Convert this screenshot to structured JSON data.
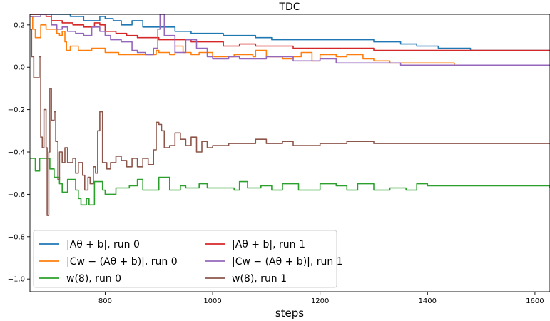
{
  "chart_data": {
    "type": "line",
    "title": "TDC",
    "xlabel": "steps",
    "ylabel": "",
    "xlim": [
      660,
      1628
    ],
    "ylim": [
      -1.06,
      0.25
    ],
    "xticks": [
      800,
      1000,
      1200,
      1400,
      1600
    ],
    "yticks": [
      -1.0,
      -0.8,
      -0.6,
      -0.4,
      -0.2,
      0.0,
      0.2
    ],
    "ytick_labels": [
      "−1.0",
      "−0.8",
      "−0.6",
      "−0.4",
      "−0.2",
      "0.0",
      "0.2"
    ],
    "xtick_labels": [
      "800",
      "1000",
      "1200",
      "1400",
      "1600"
    ],
    "grid": false,
    "legend_position": "bottom-left",
    "legend_columns": 2,
    "series": [
      {
        "name": "|Aθ + b|, run 0",
        "color": "#1f77b4",
        "points": [
          [
            660,
            0.25
          ],
          [
            700,
            0.25
          ],
          [
            735,
            0.24
          ],
          [
            760,
            0.22
          ],
          [
            790,
            0.24
          ],
          [
            800,
            0.23
          ],
          [
            815,
            0.22
          ],
          [
            830,
            0.2
          ],
          [
            850,
            0.22
          ],
          [
            870,
            0.19
          ],
          [
            900,
            0.19
          ],
          [
            930,
            0.17
          ],
          [
            960,
            0.16
          ],
          [
            990,
            0.16
          ],
          [
            1020,
            0.15
          ],
          [
            1050,
            0.15
          ],
          [
            1080,
            0.14
          ],
          [
            1110,
            0.13
          ],
          [
            1140,
            0.13
          ],
          [
            1200,
            0.13
          ],
          [
            1250,
            0.13
          ],
          [
            1300,
            0.12
          ],
          [
            1350,
            0.11
          ],
          [
            1380,
            0.1
          ],
          [
            1420,
            0.09
          ],
          [
            1480,
            0.08
          ],
          [
            1550,
            0.08
          ],
          [
            1628,
            0.08
          ]
        ]
      },
      {
        "name": "|Cw − (Aθ + b)|, run 0",
        "color": "#ff7f0e",
        "points": [
          [
            660,
            0.24
          ],
          [
            665,
            0.18
          ],
          [
            670,
            0.14
          ],
          [
            680,
            0.2
          ],
          [
            690,
            0.18
          ],
          [
            710,
            0.16
          ],
          [
            715,
            0.15
          ],
          [
            720,
            0.17
          ],
          [
            725,
            0.12
          ],
          [
            728,
            0.08
          ],
          [
            735,
            0.1
          ],
          [
            750,
            0.08
          ],
          [
            775,
            0.09
          ],
          [
            790,
            0.09
          ],
          [
            800,
            0.07
          ],
          [
            825,
            0.06
          ],
          [
            860,
            0.06
          ],
          [
            880,
            0.06
          ],
          [
            895,
            0.08
          ],
          [
            900,
            0.07
          ],
          [
            920,
            0.06
          ],
          [
            930,
            0.1
          ],
          [
            945,
            0.07
          ],
          [
            960,
            0.06
          ],
          [
            975,
            0.07
          ],
          [
            1000,
            0.05
          ],
          [
            1040,
            0.06
          ],
          [
            1075,
            0.05
          ],
          [
            1080,
            0.08
          ],
          [
            1100,
            0.05
          ],
          [
            1130,
            0.04
          ],
          [
            1150,
            0.05
          ],
          [
            1165,
            0.07
          ],
          [
            1185,
            0.03
          ],
          [
            1200,
            0.06
          ],
          [
            1230,
            0.05
          ],
          [
            1250,
            0.06
          ],
          [
            1280,
            0.04
          ],
          [
            1300,
            0.03
          ],
          [
            1330,
            0.02
          ],
          [
            1360,
            0.02
          ],
          [
            1400,
            0.02
          ],
          [
            1450,
            0.01
          ],
          [
            1500,
            0.01
          ],
          [
            1550,
            0.01
          ],
          [
            1628,
            0.01
          ]
        ]
      },
      {
        "name": "w(8), run 0",
        "color": "#2ca02c",
        "points": [
          [
            660,
            -0.43
          ],
          [
            670,
            -0.49
          ],
          [
            678,
            -0.43
          ],
          [
            690,
            -0.43
          ],
          [
            697,
            -0.48
          ],
          [
            705,
            -0.52
          ],
          [
            715,
            -0.55
          ],
          [
            720,
            -0.59
          ],
          [
            730,
            -0.53
          ],
          [
            745,
            -0.58
          ],
          [
            750,
            -0.62
          ],
          [
            755,
            -0.65
          ],
          [
            765,
            -0.62
          ],
          [
            770,
            -0.65
          ],
          [
            780,
            -0.54
          ],
          [
            795,
            -0.58
          ],
          [
            800,
            -0.6
          ],
          [
            820,
            -0.57
          ],
          [
            845,
            -0.56
          ],
          [
            860,
            -0.53
          ],
          [
            870,
            -0.58
          ],
          [
            890,
            -0.58
          ],
          [
            900,
            -0.52
          ],
          [
            920,
            -0.58
          ],
          [
            940,
            -0.56
          ],
          [
            950,
            -0.57
          ],
          [
            975,
            -0.55
          ],
          [
            990,
            -0.57
          ],
          [
            1000,
            -0.57
          ],
          [
            1040,
            -0.58
          ],
          [
            1050,
            -0.54
          ],
          [
            1065,
            -0.57
          ],
          [
            1090,
            -0.56
          ],
          [
            1110,
            -0.58
          ],
          [
            1130,
            -0.55
          ],
          [
            1160,
            -0.58
          ],
          [
            1200,
            -0.55
          ],
          [
            1230,
            -0.56
          ],
          [
            1250,
            -0.58
          ],
          [
            1270,
            -0.55
          ],
          [
            1300,
            -0.58
          ],
          [
            1330,
            -0.57
          ],
          [
            1360,
            -0.58
          ],
          [
            1380,
            -0.55
          ],
          [
            1400,
            -0.56
          ],
          [
            1450,
            -0.56
          ],
          [
            1500,
            -0.56
          ],
          [
            1550,
            -0.56
          ],
          [
            1628,
            -0.57
          ]
        ]
      },
      {
        "name": "|Aθ + b|, run 1",
        "color": "#d62728",
        "points": [
          [
            660,
            0.25
          ],
          [
            690,
            0.24
          ],
          [
            700,
            0.22
          ],
          [
            720,
            0.21
          ],
          [
            740,
            0.2
          ],
          [
            760,
            0.19
          ],
          [
            780,
            0.21
          ],
          [
            790,
            0.2
          ],
          [
            800,
            0.17
          ],
          [
            820,
            0.16
          ],
          [
            840,
            0.15
          ],
          [
            860,
            0.14
          ],
          [
            880,
            0.14
          ],
          [
            900,
            0.13
          ],
          [
            930,
            0.13
          ],
          [
            960,
            0.12
          ],
          [
            990,
            0.12
          ],
          [
            1020,
            0.1
          ],
          [
            1050,
            0.11
          ],
          [
            1080,
            0.1
          ],
          [
            1110,
            0.1
          ],
          [
            1150,
            0.09
          ],
          [
            1200,
            0.09
          ],
          [
            1250,
            0.09
          ],
          [
            1300,
            0.08
          ],
          [
            1400,
            0.08
          ],
          [
            1500,
            0.08
          ],
          [
            1628,
            0.08
          ]
        ]
      },
      {
        "name": "|Cw − (Aθ + b)|, run 1",
        "color": "#9467bd",
        "points": [
          [
            660,
            0.24
          ],
          [
            670,
            0.24
          ],
          [
            680,
            0.25
          ],
          [
            700,
            0.2
          ],
          [
            710,
            0.18
          ],
          [
            720,
            0.19
          ],
          [
            730,
            0.17
          ],
          [
            745,
            0.16
          ],
          [
            760,
            0.15
          ],
          [
            775,
            0.19
          ],
          [
            790,
            0.17
          ],
          [
            800,
            0.15
          ],
          [
            810,
            0.13
          ],
          [
            830,
            0.12
          ],
          [
            850,
            0.08
          ],
          [
            860,
            0.07
          ],
          [
            875,
            0.06
          ],
          [
            890,
            0.09
          ],
          [
            898,
            0.18
          ],
          [
            902,
            0.25
          ],
          [
            910,
            0.15
          ],
          [
            930,
            0.07
          ],
          [
            950,
            0.13
          ],
          [
            970,
            0.09
          ],
          [
            990,
            0.05
          ],
          [
            1000,
            0.04
          ],
          [
            1030,
            0.05
          ],
          [
            1050,
            0.04
          ],
          [
            1100,
            0.05
          ],
          [
            1150,
            0.03
          ],
          [
            1200,
            0.04
          ],
          [
            1230,
            0.02
          ],
          [
            1260,
            0.02
          ],
          [
            1300,
            0.02
          ],
          [
            1350,
            0.01
          ],
          [
            1400,
            0.01
          ],
          [
            1500,
            0.01
          ],
          [
            1628,
            0.01
          ]
        ]
      },
      {
        "name": "w(8), run 1",
        "color": "#8c564b",
        "points": [
          [
            660,
            0.18
          ],
          [
            663,
            0.05
          ],
          [
            667,
            -0.05
          ],
          [
            672,
            -0.05
          ],
          [
            677,
            0.05
          ],
          [
            680,
            -0.33
          ],
          [
            683,
            -0.38
          ],
          [
            686,
            -0.2
          ],
          [
            690,
            -0.38
          ],
          [
            692,
            -0.7
          ],
          [
            695,
            -0.4
          ],
          [
            697,
            -0.1
          ],
          [
            700,
            -0.25
          ],
          [
            705,
            -0.21
          ],
          [
            708,
            -0.35
          ],
          [
            712,
            -0.53
          ],
          [
            715,
            -0.4
          ],
          [
            720,
            -0.45
          ],
          [
            725,
            -0.38
          ],
          [
            730,
            -0.45
          ],
          [
            740,
            -0.43
          ],
          [
            745,
            -0.5
          ],
          [
            750,
            -0.45
          ],
          [
            758,
            -0.51
          ],
          [
            762,
            -0.58
          ],
          [
            768,
            -0.52
          ],
          [
            772,
            -0.55
          ],
          [
            778,
            -0.47
          ],
          [
            782,
            -0.5
          ],
          [
            786,
            -0.3
          ],
          [
            790,
            -0.21
          ],
          [
            795,
            -0.45
          ],
          [
            803,
            -0.48
          ],
          [
            810,
            -0.45
          ],
          [
            820,
            -0.42
          ],
          [
            830,
            -0.44
          ],
          [
            840,
            -0.47
          ],
          [
            850,
            -0.43
          ],
          [
            860,
            -0.47
          ],
          [
            870,
            -0.43
          ],
          [
            880,
            -0.46
          ],
          [
            890,
            -0.39
          ],
          [
            895,
            -0.26
          ],
          [
            900,
            -0.27
          ],
          [
            905,
            -0.3
          ],
          [
            910,
            -0.38
          ],
          [
            920,
            -0.37
          ],
          [
            930,
            -0.31
          ],
          [
            940,
            -0.34
          ],
          [
            950,
            -0.37
          ],
          [
            960,
            -0.33
          ],
          [
            970,
            -0.4
          ],
          [
            980,
            -0.35
          ],
          [
            990,
            -0.38
          ],
          [
            1000,
            -0.37
          ],
          [
            1030,
            -0.36
          ],
          [
            1050,
            -0.36
          ],
          [
            1080,
            -0.34
          ],
          [
            1100,
            -0.36
          ],
          [
            1130,
            -0.35
          ],
          [
            1150,
            -0.37
          ],
          [
            1200,
            -0.36
          ],
          [
            1250,
            -0.35
          ],
          [
            1300,
            -0.36
          ],
          [
            1350,
            -0.36
          ],
          [
            1400,
            -0.36
          ],
          [
            1450,
            -0.36
          ],
          [
            1500,
            -0.36
          ],
          [
            1550,
            -0.36
          ],
          [
            1628,
            -0.36
          ]
        ]
      }
    ]
  }
}
